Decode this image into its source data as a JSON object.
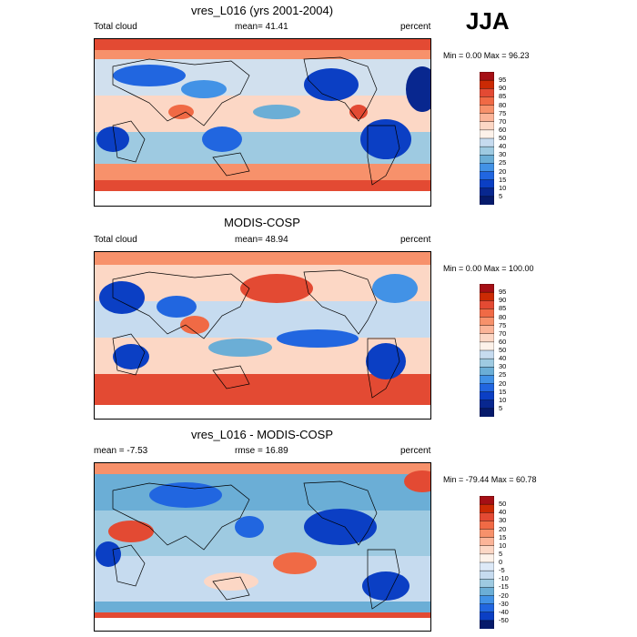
{
  "season": "JJA",
  "panels": [
    {
      "title": "vres_L016 (yrs 2001-2004)",
      "left_label": "Total cloud",
      "center_label": "mean=  41.41",
      "right_label": "percent",
      "minmax": "Min =   0.00 Max =  96.23"
    },
    {
      "title": "MODIS-COSP",
      "left_label": "Total cloud",
      "center_label": "mean=  48.94",
      "right_label": "percent",
      "minmax": "Min =   0.00 Max = 100.00"
    },
    {
      "title": "vres_L016 - MODIS-COSP",
      "left_label": "mean =  -7.53",
      "center_label": "rmse =  16.89",
      "right_label": "percent",
      "minmax": "Min = -79.44 Max =  60.78"
    }
  ],
  "chart_data": [
    {
      "type": "heatmap",
      "title": "vres_L016 (yrs 2001-2004)",
      "variable": "Total cloud",
      "units": "percent",
      "mean": 41.41,
      "min": 0.0,
      "max": 96.23,
      "colorbar_levels": [
        "95",
        "90",
        "85",
        "80",
        "75",
        "70",
        "60",
        "50",
        "40",
        "30",
        "25",
        "20",
        "15",
        "10",
        "5"
      ],
      "colorbar_colors": [
        "#a50f15",
        "#cb2a04",
        "#e34a33",
        "#f06a45",
        "#f7916b",
        "#fbb498",
        "#fcd7c5",
        "#fdf2ea",
        "#c6dbef",
        "#9ecae1",
        "#6baed6",
        "#4292e6",
        "#2166e0",
        "#0b3fc4",
        "#08278f",
        "#061a6b"
      ]
    },
    {
      "type": "heatmap",
      "title": "MODIS-COSP",
      "variable": "Total cloud",
      "units": "percent",
      "mean": 48.94,
      "min": 0.0,
      "max": 100.0,
      "colorbar_levels": [
        "95",
        "90",
        "85",
        "80",
        "75",
        "70",
        "60",
        "50",
        "40",
        "30",
        "25",
        "20",
        "15",
        "10",
        "5"
      ],
      "colorbar_colors": [
        "#a50f15",
        "#cb2a04",
        "#e34a33",
        "#f06a45",
        "#f7916b",
        "#fbb498",
        "#fcd7c5",
        "#fdf2ea",
        "#c6dbef",
        "#9ecae1",
        "#6baed6",
        "#4292e6",
        "#2166e0",
        "#0b3fc4",
        "#08278f",
        "#061a6b"
      ]
    },
    {
      "type": "heatmap",
      "title": "vres_L016 - MODIS-COSP",
      "units": "percent",
      "mean": -7.53,
      "rmse": 16.89,
      "min": -79.44,
      "max": 60.78,
      "colorbar_levels": [
        "50",
        "40",
        "30",
        "20",
        "15",
        "10",
        "5",
        "0",
        "-5",
        "-10",
        "-15",
        "-20",
        "-30",
        "-40",
        "-50"
      ],
      "colorbar_colors": [
        "#a50f15",
        "#cb2a04",
        "#e34a33",
        "#f06a45",
        "#f7916b",
        "#fbb498",
        "#fcd7c5",
        "#fdf2ea",
        "#dde9f7",
        "#c6dbef",
        "#9ecae1",
        "#6baed6",
        "#4292e6",
        "#2166e0",
        "#0b3fc4",
        "#061a6b"
      ]
    }
  ]
}
